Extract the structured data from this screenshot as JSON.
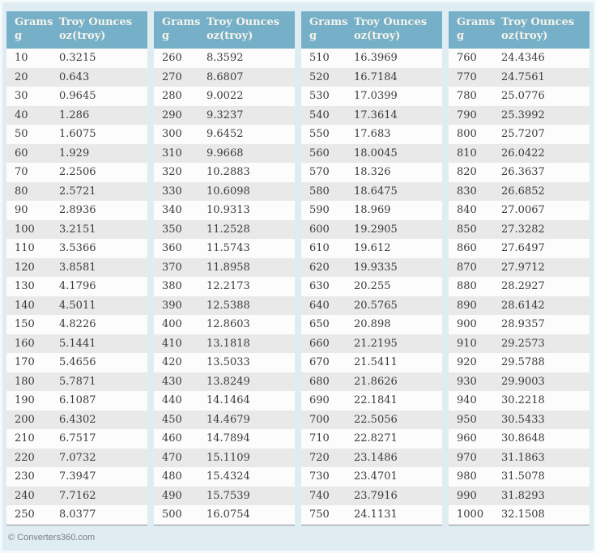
{
  "page": {
    "footer_copyright": "© Converters360.com"
  },
  "colors": {
    "page_bg": "#dfedf3",
    "header_bg": "#76afc8",
    "header_text": "#f6f4ea",
    "row_odd": "#fcfcfc",
    "row_even": "#e9e9e9",
    "cell_text": "#3b3b3b",
    "table_bottom_border": "#8f8f8f",
    "footer_text": "#7d7d7d"
  },
  "header": {
    "grams_line1": "Grams",
    "grams_line2": "g",
    "ounces_line1": "Troy Ounces",
    "ounces_line2": "oz(troy)"
  },
  "tables": [
    {
      "rows": [
        {
          "g": "10",
          "oz": "0.3215"
        },
        {
          "g": "20",
          "oz": "0.643"
        },
        {
          "g": "30",
          "oz": "0.9645"
        },
        {
          "g": "40",
          "oz": "1.286"
        },
        {
          "g": "50",
          "oz": "1.6075"
        },
        {
          "g": "60",
          "oz": "1.929"
        },
        {
          "g": "70",
          "oz": "2.2506"
        },
        {
          "g": "80",
          "oz": "2.5721"
        },
        {
          "g": "90",
          "oz": "2.8936"
        },
        {
          "g": "100",
          "oz": "3.2151"
        },
        {
          "g": "110",
          "oz": "3.5366"
        },
        {
          "g": "120",
          "oz": "3.8581"
        },
        {
          "g": "130",
          "oz": "4.1796"
        },
        {
          "g": "140",
          "oz": "4.5011"
        },
        {
          "g": "150",
          "oz": "4.8226"
        },
        {
          "g": "160",
          "oz": "5.1441"
        },
        {
          "g": "170",
          "oz": "5.4656"
        },
        {
          "g": "180",
          "oz": "5.7871"
        },
        {
          "g": "190",
          "oz": "6.1087"
        },
        {
          "g": "200",
          "oz": "6.4302"
        },
        {
          "g": "210",
          "oz": "6.7517"
        },
        {
          "g": "220",
          "oz": "7.0732"
        },
        {
          "g": "230",
          "oz": "7.3947"
        },
        {
          "g": "240",
          "oz": "7.7162"
        },
        {
          "g": "250",
          "oz": "8.0377"
        }
      ]
    },
    {
      "rows": [
        {
          "g": "260",
          "oz": "8.3592"
        },
        {
          "g": "270",
          "oz": "8.6807"
        },
        {
          "g": "280",
          "oz": "9.0022"
        },
        {
          "g": "290",
          "oz": "9.3237"
        },
        {
          "g": "300",
          "oz": "9.6452"
        },
        {
          "g": "310",
          "oz": "9.9668"
        },
        {
          "g": "320",
          "oz": "10.2883"
        },
        {
          "g": "330",
          "oz": "10.6098"
        },
        {
          "g": "340",
          "oz": "10.9313"
        },
        {
          "g": "350",
          "oz": "11.2528"
        },
        {
          "g": "360",
          "oz": "11.5743"
        },
        {
          "g": "370",
          "oz": "11.8958"
        },
        {
          "g": "380",
          "oz": "12.2173"
        },
        {
          "g": "390",
          "oz": "12.5388"
        },
        {
          "g": "400",
          "oz": "12.8603"
        },
        {
          "g": "410",
          "oz": "13.1818"
        },
        {
          "g": "420",
          "oz": "13.5033"
        },
        {
          "g": "430",
          "oz": "13.8249"
        },
        {
          "g": "440",
          "oz": "14.1464"
        },
        {
          "g": "450",
          "oz": "14.4679"
        },
        {
          "g": "460",
          "oz": "14.7894"
        },
        {
          "g": "470",
          "oz": "15.1109"
        },
        {
          "g": "480",
          "oz": "15.4324"
        },
        {
          "g": "490",
          "oz": "15.7539"
        },
        {
          "g": "500",
          "oz": "16.0754"
        }
      ]
    },
    {
      "rows": [
        {
          "g": "510",
          "oz": "16.3969"
        },
        {
          "g": "520",
          "oz": "16.7184"
        },
        {
          "g": "530",
          "oz": "17.0399"
        },
        {
          "g": "540",
          "oz": "17.3614"
        },
        {
          "g": "550",
          "oz": "17.683"
        },
        {
          "g": "560",
          "oz": "18.0045"
        },
        {
          "g": "570",
          "oz": "18.326"
        },
        {
          "g": "580",
          "oz": "18.6475"
        },
        {
          "g": "590",
          "oz": "18.969"
        },
        {
          "g": "600",
          "oz": "19.2905"
        },
        {
          "g": "610",
          "oz": "19.612"
        },
        {
          "g": "620",
          "oz": "19.9335"
        },
        {
          "g": "630",
          "oz": "20.255"
        },
        {
          "g": "640",
          "oz": "20.5765"
        },
        {
          "g": "650",
          "oz": "20.898"
        },
        {
          "g": "660",
          "oz": "21.2195"
        },
        {
          "g": "670",
          "oz": "21.5411"
        },
        {
          "g": "680",
          "oz": "21.8626"
        },
        {
          "g": "690",
          "oz": "22.1841"
        },
        {
          "g": "700",
          "oz": "22.5056"
        },
        {
          "g": "710",
          "oz": "22.8271"
        },
        {
          "g": "720",
          "oz": "23.1486"
        },
        {
          "g": "730",
          "oz": "23.4701"
        },
        {
          "g": "740",
          "oz": "23.7916"
        },
        {
          "g": "750",
          "oz": "24.1131"
        }
      ]
    },
    {
      "rows": [
        {
          "g": "760",
          "oz": "24.4346"
        },
        {
          "g": "770",
          "oz": "24.7561"
        },
        {
          "g": "780",
          "oz": "25.0776"
        },
        {
          "g": "790",
          "oz": "25.3992"
        },
        {
          "g": "800",
          "oz": "25.7207"
        },
        {
          "g": "810",
          "oz": "26.0422"
        },
        {
          "g": "820",
          "oz": "26.3637"
        },
        {
          "g": "830",
          "oz": "26.6852"
        },
        {
          "g": "840",
          "oz": "27.0067"
        },
        {
          "g": "850",
          "oz": "27.3282"
        },
        {
          "g": "860",
          "oz": "27.6497"
        },
        {
          "g": "870",
          "oz": "27.9712"
        },
        {
          "g": "880",
          "oz": "28.2927"
        },
        {
          "g": "890",
          "oz": "28.6142"
        },
        {
          "g": "900",
          "oz": "28.9357"
        },
        {
          "g": "910",
          "oz": "29.2573"
        },
        {
          "g": "920",
          "oz": "29.5788"
        },
        {
          "g": "930",
          "oz": "29.9003"
        },
        {
          "g": "940",
          "oz": "30.2218"
        },
        {
          "g": "950",
          "oz": "30.5433"
        },
        {
          "g": "960",
          "oz": "30.8648"
        },
        {
          "g": "970",
          "oz": "31.1863"
        },
        {
          "g": "980",
          "oz": "31.5078"
        },
        {
          "g": "990",
          "oz": "31.8293"
        },
        {
          "g": "1000",
          "oz": "32.1508"
        }
      ]
    }
  ]
}
